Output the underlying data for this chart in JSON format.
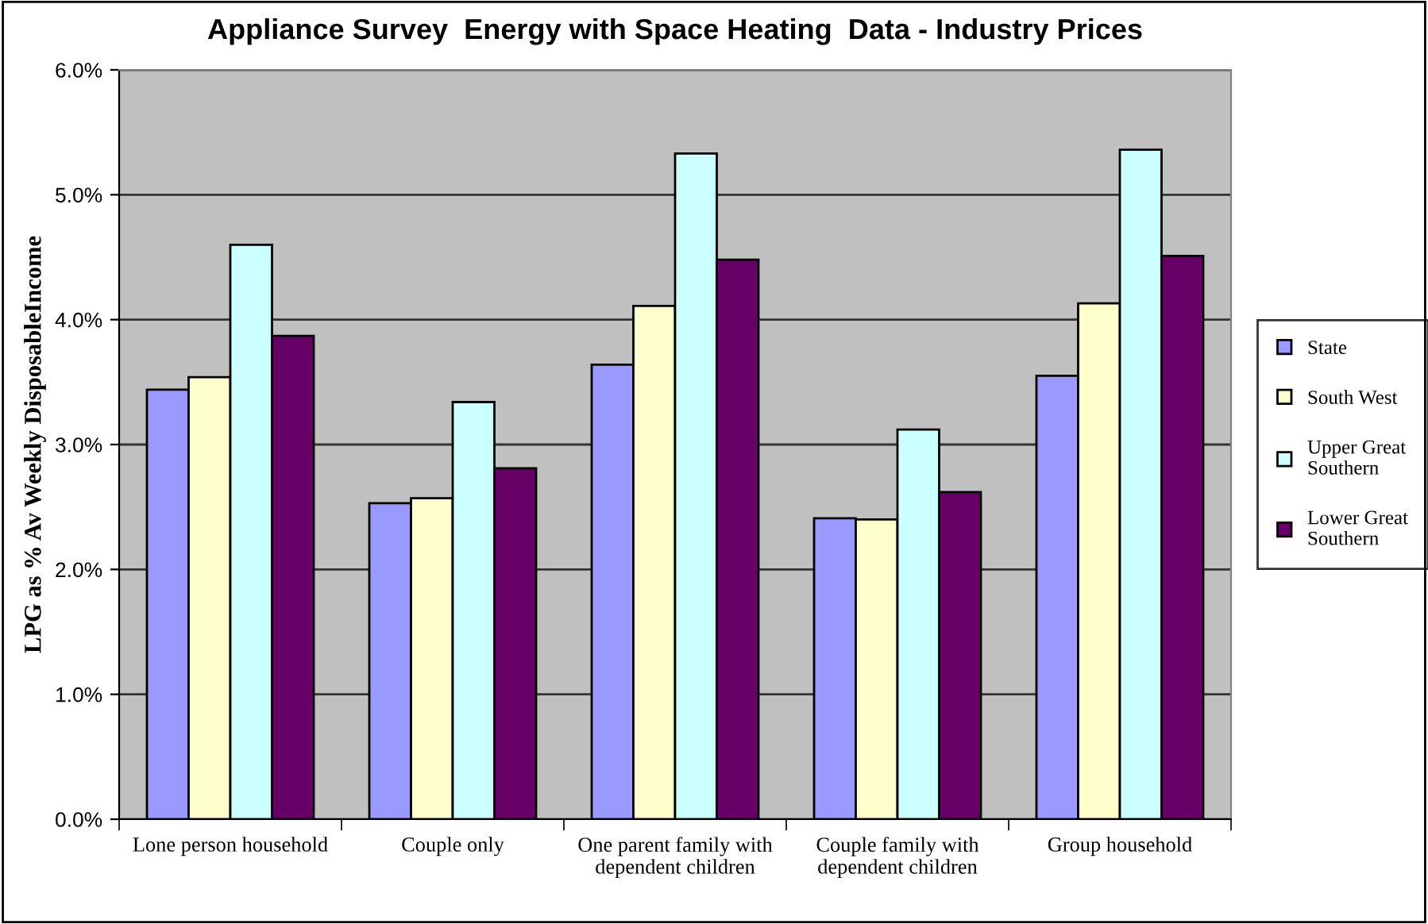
{
  "chart_data": {
    "type": "bar",
    "title": "Appliance Survey  Energy with Space Heating  Data - Industry Prices",
    "ylabel": "LPG as % Av Weekly DisposableIncome",
    "categories": [
      "Lone person household",
      "Couple only",
      "One parent family with\ndependent children",
      "Couple family with\ndependent children",
      "Group household"
    ],
    "series": [
      {
        "name": "State",
        "color": "#9999ff",
        "values": [
          3.44,
          2.53,
          3.64,
          2.41,
          3.55
        ]
      },
      {
        "name": "South West",
        "color": "#ffffcc",
        "values": [
          3.54,
          2.57,
          4.11,
          2.4,
          4.13
        ]
      },
      {
        "name": "Upper Great\nSouthern",
        "color": "#ccffff",
        "values": [
          4.6,
          3.34,
          5.33,
          3.12,
          5.36
        ]
      },
      {
        "name": "Lower Great\nSouthern",
        "color": "#660066",
        "values": [
          3.87,
          2.81,
          4.48,
          2.62,
          4.51
        ]
      }
    ],
    "ylim": [
      0,
      6
    ],
    "yticks": [
      {
        "value": 0,
        "label": "0.0%"
      },
      {
        "value": 1,
        "label": "1.0%"
      },
      {
        "value": 2,
        "label": "2.0%"
      },
      {
        "value": 3,
        "label": "3.0%"
      },
      {
        "value": 4,
        "label": "4.0%"
      },
      {
        "value": 5,
        "label": "5.0%"
      },
      {
        "value": 6,
        "label": "6.0%"
      }
    ],
    "grid": "y",
    "legend": "right"
  }
}
